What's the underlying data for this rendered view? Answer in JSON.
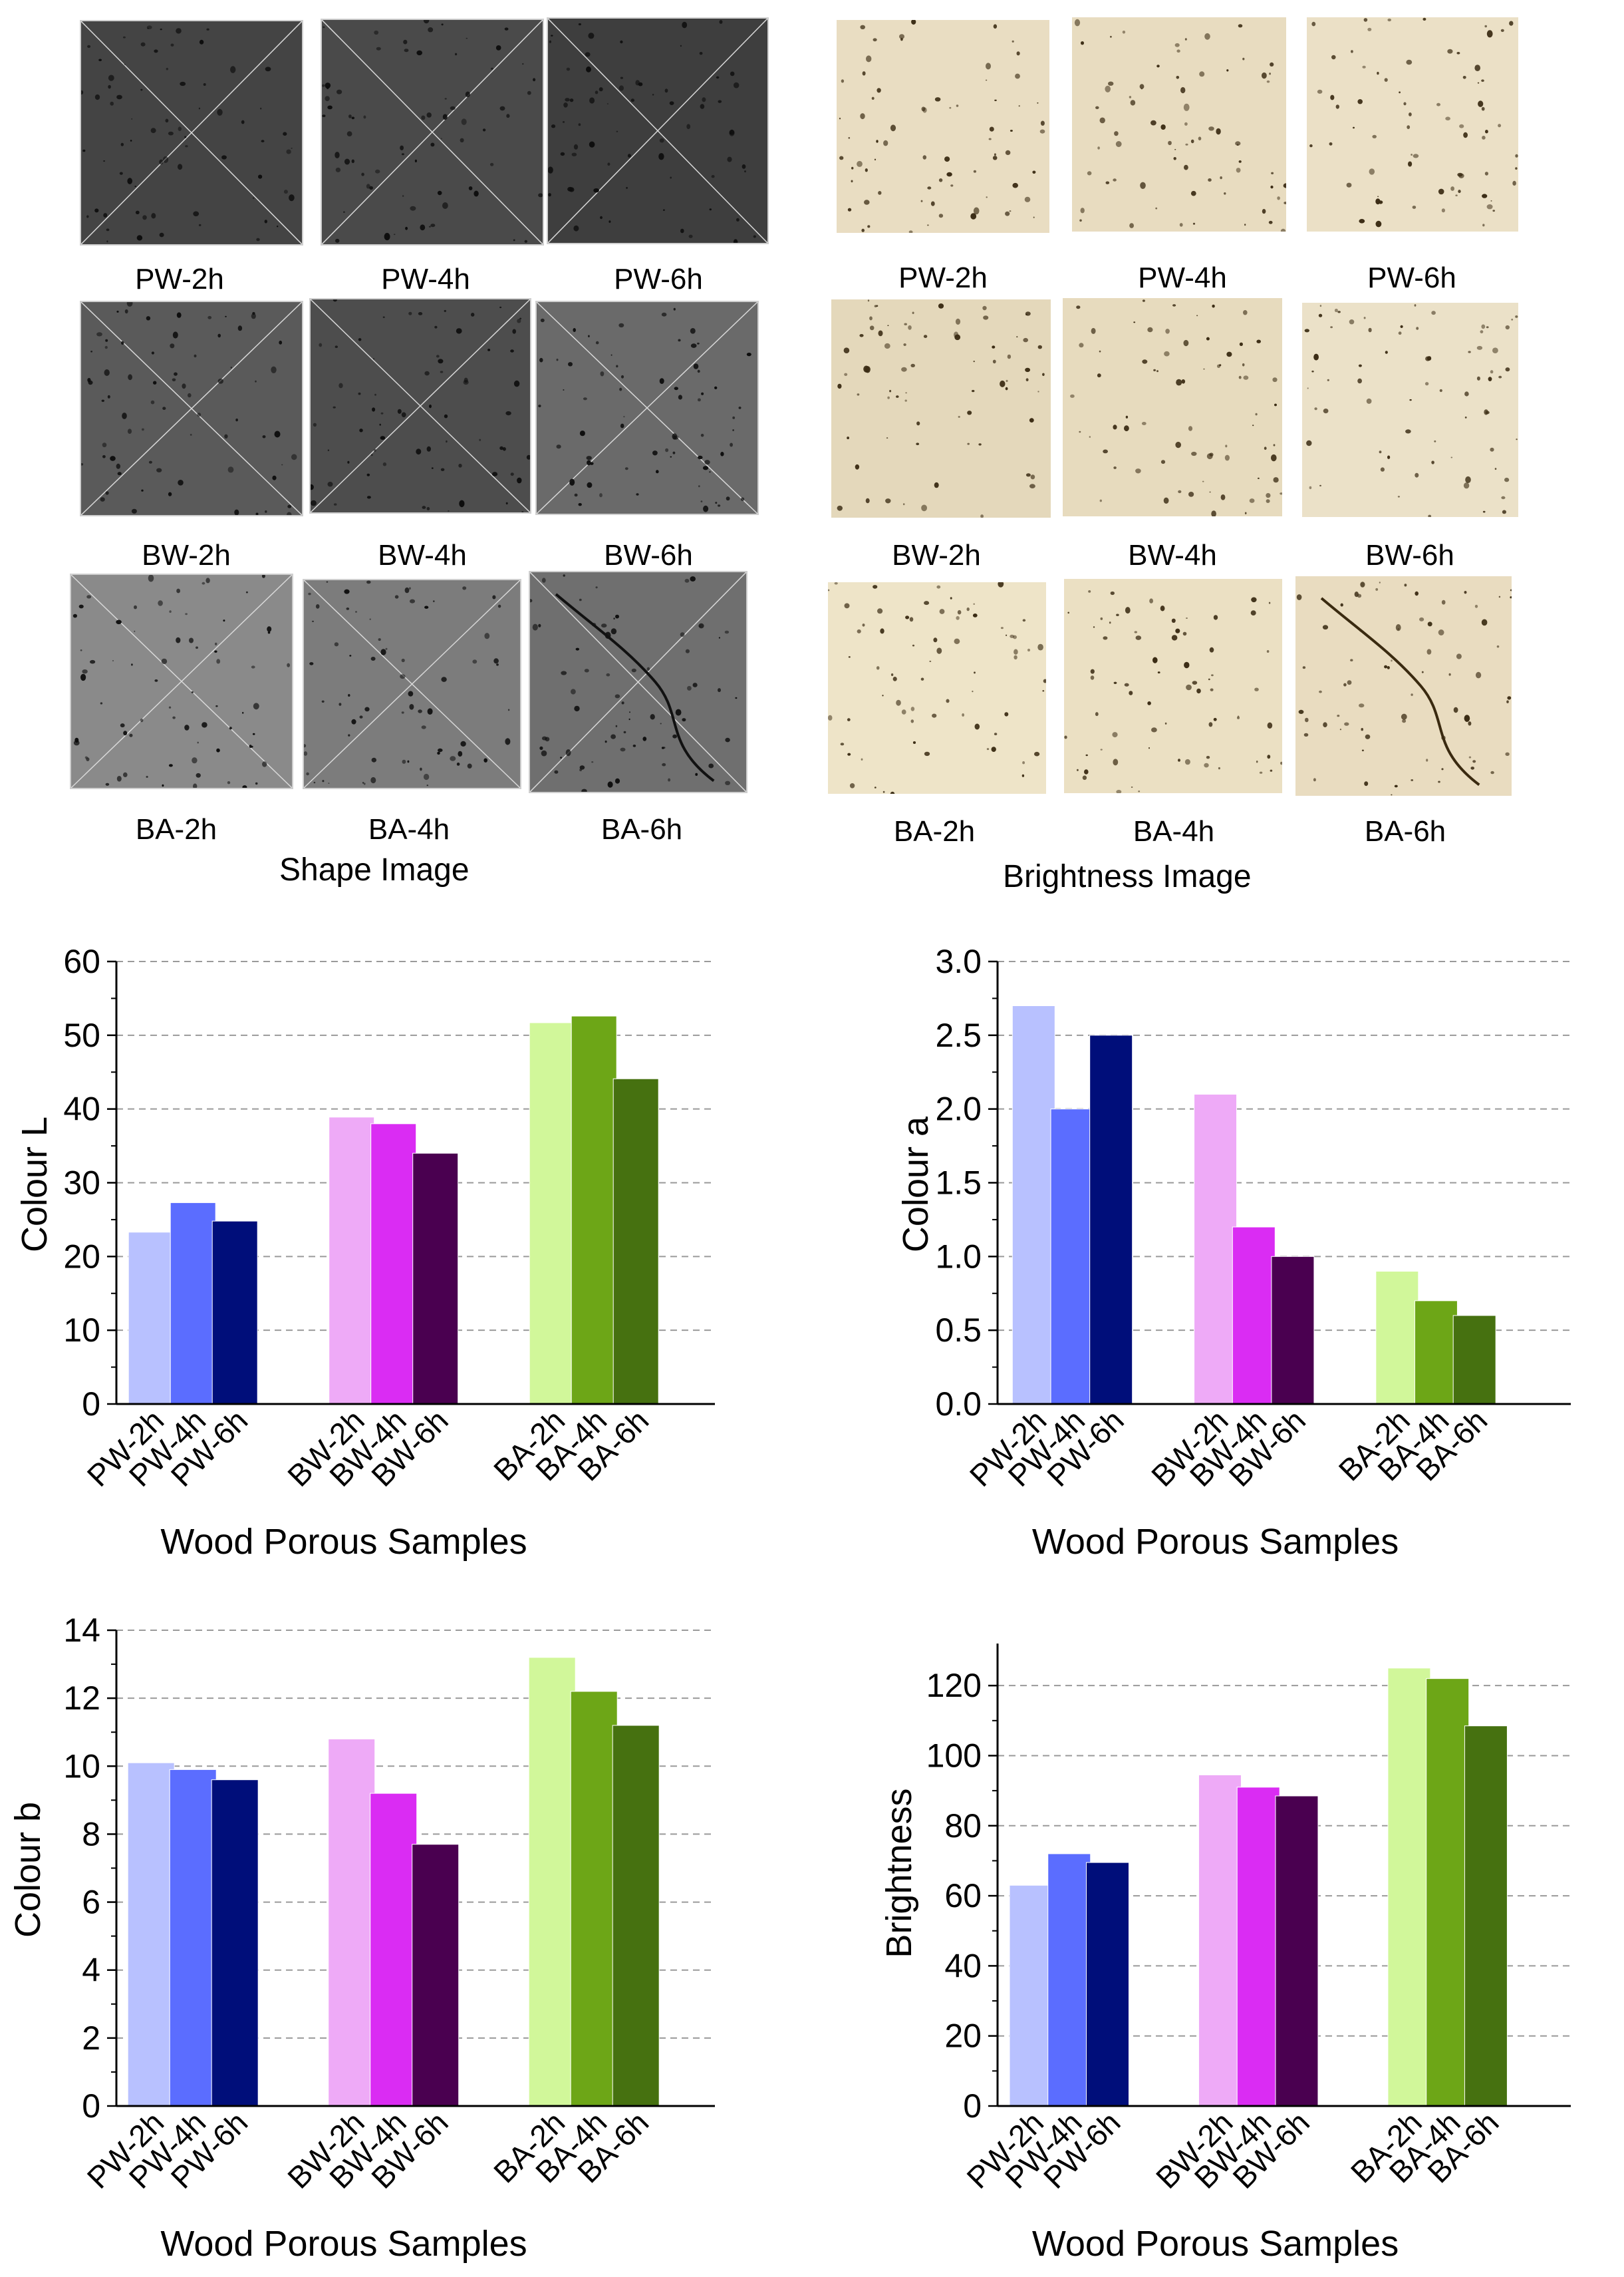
{
  "figure": {
    "shape_panel": {
      "title": "Shape Image",
      "rows": [
        [
          "PW-2h",
          "PW-4h",
          "PW-6h"
        ],
        [
          "BW-2h",
          "BW-4h",
          "BW-6h"
        ],
        [
          "BA-2h",
          "BA-4h",
          "BA-6h"
        ]
      ]
    },
    "brightness_panel": {
      "title": "Brightness Image",
      "rows": [
        [
          "PW-2h",
          "PW-4h",
          "PW-6h"
        ],
        [
          "BW-2h",
          "BW-4h",
          "BW-6h"
        ],
        [
          "BA-2h",
          "BA-4h",
          "BA-6h"
        ]
      ]
    },
    "colors": {
      "PW-2h": "#b8c1ff",
      "PW-4h": "#5b6dff",
      "PW-6h": "#000e7a",
      "BW-2h": "#eeaaf7",
      "BW-4h": "#da2cf3",
      "BW-6h": "#4a0050",
      "BA-2h": "#d1f79a",
      "BA-4h": "#6da617",
      "BA-6h": "#467110",
      "gray_tile": "#4a4a4a",
      "cream_tile": "#e8dcc0"
    }
  },
  "chart_data": [
    {
      "type": "bar",
      "categories": [
        "PW-2h",
        "PW-4h",
        "PW-6h",
        "BW-2h",
        "BW-4h",
        "BW-6h",
        "BA-2h",
        "BA-4h",
        "BA-6h"
      ],
      "values": [
        23.3,
        27.3,
        24.8,
        38.9,
        38.0,
        34.0,
        51.7,
        52.6,
        44.1
      ],
      "ylabel": "Colour L",
      "xlabel": "Wood Porous Samples",
      "ylim": [
        0,
        60
      ],
      "yticks": [
        "0",
        "10",
        "20",
        "30",
        "40",
        "50",
        "60"
      ]
    },
    {
      "type": "bar",
      "categories": [
        "PW-2h",
        "PW-4h",
        "PW-6h",
        "BW-2h",
        "BW-4h",
        "BW-6h",
        "BA-2h",
        "BA-4h",
        "BA-6h"
      ],
      "values": [
        2.7,
        2.0,
        2.5,
        2.1,
        1.2,
        1.0,
        0.9,
        0.7,
        0.6
      ],
      "ylabel": "Colour a",
      "xlabel": "Wood Porous Samples",
      "ylim": [
        0,
        3.0
      ],
      "yticks": [
        "0.0",
        "0.5",
        "1.0",
        "1.5",
        "2.0",
        "2.5",
        "3.0"
      ]
    },
    {
      "type": "bar",
      "categories": [
        "PW-2h",
        "PW-4h",
        "PW-6h",
        "BW-2h",
        "BW-4h",
        "BW-6h",
        "BA-2h",
        "BA-4h",
        "BA-6h"
      ],
      "values": [
        10.1,
        9.9,
        9.6,
        10.8,
        9.2,
        7.7,
        13.2,
        12.2,
        11.2
      ],
      "ylabel": "Colour b",
      "xlabel": "Wood Porous Samples",
      "ylim": [
        0,
        14
      ],
      "yticks": [
        "0",
        "2",
        "4",
        "6",
        "8",
        "10",
        "12",
        "14"
      ]
    },
    {
      "type": "bar",
      "categories": [
        "PW-2h",
        "PW-4h",
        "PW-6h",
        "BW-2h",
        "BW-4h",
        "BW-6h",
        "BA-2h",
        "BA-4h",
        "BA-6h"
      ],
      "values": [
        63.0,
        72.0,
        69.5,
        94.5,
        91.0,
        88.5,
        125.0,
        122.0,
        108.5
      ],
      "ylabel": "Brightness",
      "xlabel": "Wood Porous Samples",
      "ylim": [
        0,
        132
      ],
      "yticks": [
        "0",
        "20",
        "40",
        "60",
        "80",
        "100",
        "120"
      ]
    }
  ]
}
